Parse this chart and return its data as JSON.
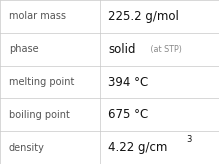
{
  "rows": [
    {
      "label": "molar mass",
      "value": "225.2 g/mol",
      "type": "plain"
    },
    {
      "label": "phase",
      "value": "solid",
      "type": "phase",
      "suffix": " (at STP)"
    },
    {
      "label": "melting point",
      "value": "394 °C",
      "type": "plain"
    },
    {
      "label": "boiling point",
      "value": "675 °C",
      "type": "plain"
    },
    {
      "label": "density",
      "value": "4.22 g/cm",
      "type": "super",
      "superscript": "3"
    }
  ],
  "bg_color": "#ffffff",
  "grid_color": "#c8c8c8",
  "label_color": "#555555",
  "value_color": "#111111",
  "suffix_color": "#888888",
  "col_split": 0.455,
  "label_fontsize": 7.0,
  "value_fontsize": 8.5,
  "suffix_fontsize": 5.8,
  "super_fontsize": 6.0,
  "line_width": 0.5
}
